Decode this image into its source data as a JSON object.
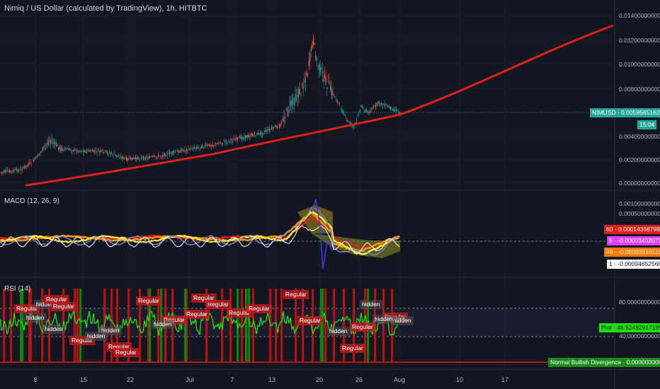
{
  "header": {
    "title": "Nimiq / US Dollar (calculated by TradingView), 1h, HITBTC"
  },
  "colors": {
    "background": "#131722",
    "ma_red": "#e0201b",
    "candle_up": "#26a69a",
    "candle_down": "#ef5350",
    "rsi_green": "#22dd11",
    "regular_red": "#b71c1c",
    "macd_orange": "#ff9800",
    "macd_yellow": "#ffeb3b",
    "macd_purple": "#8e7cc3",
    "macd_blue": "#3f3fe0",
    "macd_white": "#ffffff",
    "teal_tag": "#26a69a"
  },
  "price_axis": {
    "labels": [
      "0.01400000000",
      "0.01200000000",
      "0.01000000000",
      "0.00800000000",
      "0.00400000000",
      "0.00200000000",
      "0.00000000000"
    ],
    "current_tag": "NIMUSD · 0.00595651624",
    "countdown_tag": "15:04"
  },
  "macd_pane": {
    "title": "MACD (12, 26, 9)",
    "axis_labels": [
      "0.00100000000",
      "0.00050000000"
    ],
    "tags": [
      {
        "text": "60 · 0.00014366799",
        "bg": "#e0201b",
        "fg": "#ffffff"
      },
      {
        "text": "5 · -0.00003402072",
        "bg": "#e040fb",
        "fg": "#ffffff"
      },
      {
        "text": "45 · -0.00003510110",
        "bg": "#ff7b00",
        "fg": "#ffffff"
      },
      {
        "text": "1 · -0.00004652568",
        "bg": "#ffffff",
        "fg": "#131722"
      }
    ]
  },
  "rsi_pane": {
    "title": "RSI (14)",
    "axis_labels": [
      "80.00000000000",
      "40.00000000000"
    ],
    "plot_tag": "Plot · 46.52492917195",
    "divergence_tag": "Normal Bullish Divergence · 0.00000000000",
    "annotations": [
      {
        "text": "Regular"
      },
      {
        "text": "hidden"
      },
      {
        "text": "Regular"
      },
      {
        "text": "Regular"
      },
      {
        "text": "hidden"
      },
      {
        "text": "Regular"
      },
      {
        "text": "hidden"
      },
      {
        "text": "Regular"
      },
      {
        "text": "Regular"
      },
      {
        "text": "hidden"
      },
      {
        "text": "Regular"
      },
      {
        "text": "Regular"
      },
      {
        "text": "Regular"
      },
      {
        "text": "hidden"
      },
      {
        "text": "Regular"
      },
      {
        "text": "Regular"
      },
      {
        "text": "Regular"
      },
      {
        "text": "Regular"
      },
      {
        "text": "hidden"
      },
      {
        "text": "Regular"
      },
      {
        "text": "hidden"
      },
      {
        "text": "Regular"
      },
      {
        "text": "hidden"
      },
      {
        "text": "Regular"
      },
      {
        "text": "hidden"
      },
      {
        "text": "Regular"
      },
      {
        "text": "Regular"
      },
      {
        "text": "hidden"
      }
    ]
  },
  "time_axis": {
    "labels": [
      "8",
      "15",
      "22",
      "Jul",
      "7",
      "13",
      "20",
      "26",
      "Aug",
      "10",
      "17"
    ]
  }
}
